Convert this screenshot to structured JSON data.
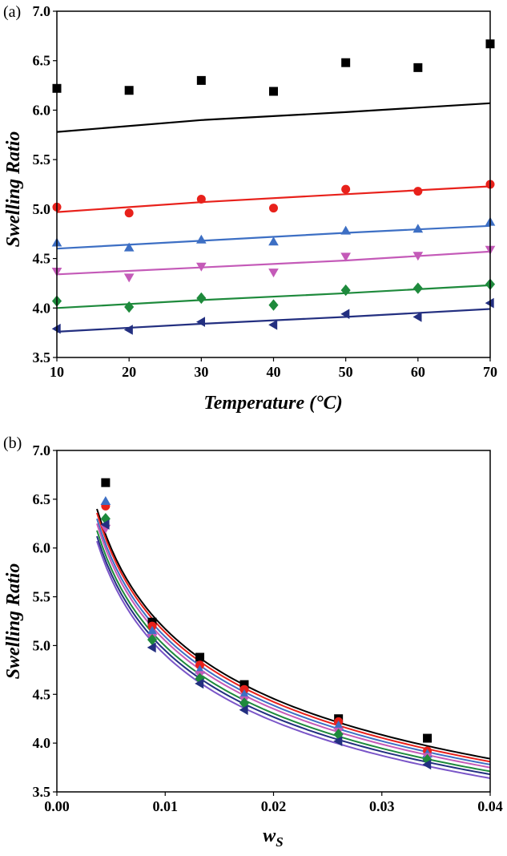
{
  "chart_data": [
    {
      "type": "scatter",
      "panel_label": "(a)",
      "xlabel": "Temperature (°C)",
      "ylabel": "Swelling Ratio",
      "xlim": [
        10,
        70
      ],
      "ylim": [
        3.5,
        7.0
      ],
      "x_ticks": [
        "10",
        "20",
        "30",
        "40",
        "50",
        "60",
        "70"
      ],
      "y_ticks": [
        "3.5",
        "4.0",
        "4.5",
        "5.0",
        "5.5",
        "6.0",
        "6.5",
        "7.0"
      ],
      "grid": false,
      "legend": "none",
      "series": [
        {
          "color": "#000000",
          "marker": "square",
          "x": [
            10,
            20,
            30,
            40,
            50,
            60,
            70
          ],
          "points": [
            6.22,
            6.2,
            6.3,
            6.19,
            6.48,
            6.43,
            6.67
          ],
          "fit": [
            [
              10,
              5.78
            ],
            [
              30,
              5.9
            ],
            [
              50,
              5.98
            ],
            [
              70,
              6.07
            ]
          ]
        },
        {
          "color": "#e8211b",
          "marker": "circle",
          "x": [
            10,
            20,
            30,
            40,
            50,
            60,
            70
          ],
          "points": [
            5.02,
            4.96,
            5.1,
            5.01,
            5.2,
            5.18,
            5.25
          ],
          "fit": [
            [
              10,
              4.97
            ],
            [
              30,
              5.07
            ],
            [
              50,
              5.15
            ],
            [
              70,
              5.23
            ]
          ]
        },
        {
          "color": "#3d6fc4",
          "marker": "triangle-up",
          "x": [
            10,
            20,
            30,
            40,
            50,
            60,
            70
          ],
          "points": [
            4.66,
            4.61,
            4.69,
            4.67,
            4.78,
            4.8,
            4.87
          ],
          "fit": [
            [
              10,
              4.6
            ],
            [
              30,
              4.68
            ],
            [
              50,
              4.76
            ],
            [
              70,
              4.83
            ]
          ]
        },
        {
          "color": "#c45ab8",
          "marker": "triangle-down",
          "x": [
            10,
            20,
            30,
            40,
            50,
            60,
            70
          ],
          "points": [
            4.37,
            4.31,
            4.42,
            4.36,
            4.52,
            4.53,
            4.59
          ],
          "fit": [
            [
              10,
              4.34
            ],
            [
              30,
              4.41
            ],
            [
              50,
              4.48
            ],
            [
              70,
              4.57
            ]
          ]
        },
        {
          "color": "#1e8a3c",
          "marker": "diamond",
          "x": [
            10,
            20,
            30,
            40,
            50,
            60,
            70
          ],
          "points": [
            4.07,
            4.01,
            4.1,
            4.03,
            4.18,
            4.2,
            4.24
          ],
          "fit": [
            [
              10,
              4.0
            ],
            [
              30,
              4.08
            ],
            [
              50,
              4.15
            ],
            [
              70,
              4.23
            ]
          ]
        },
        {
          "color": "#232f80",
          "marker": "triangle-left",
          "x": [
            10,
            20,
            30,
            40,
            50,
            60,
            70
          ],
          "points": [
            3.79,
            3.78,
            3.86,
            3.83,
            3.94,
            3.91,
            4.05
          ],
          "fit": [
            [
              10,
              3.76
            ],
            [
              30,
              3.84
            ],
            [
              50,
              3.91
            ],
            [
              70,
              3.99
            ]
          ]
        }
      ]
    },
    {
      "type": "scatter",
      "panel_label": "(b)",
      "xlabel": "w",
      "xlabel_subscript": "S",
      "ylabel": "Swelling Ratio",
      "xlim": [
        0.0,
        0.04
      ],
      "ylim": [
        3.5,
        7.0
      ],
      "x_ticks": [
        "0.00",
        "0.01",
        "0.02",
        "0.03",
        "0.04"
      ],
      "y_ticks": [
        "3.5",
        "4.0",
        "4.5",
        "5.0",
        "5.5",
        "6.0",
        "6.5",
        "7.0"
      ],
      "grid": false,
      "legend": "none",
      "series": [
        {
          "color": "#000000",
          "marker": "square",
          "x": [
            0.0045,
            0.0088,
            0.0132,
            0.0173,
            0.026,
            0.0342
          ],
          "points": [
            6.67,
            5.24,
            4.88,
            4.6,
            4.25,
            4.05
          ],
          "fit_x": [
            0.0037,
            0.04
          ],
          "fit_y": [
            6.4,
            3.84
          ]
        },
        {
          "color": "#e8211b",
          "marker": "circle",
          "x": [
            0.0045,
            0.0088,
            0.0132,
            0.0173,
            0.026,
            0.0342
          ],
          "points": [
            6.43,
            5.2,
            4.8,
            4.55,
            4.22,
            3.92
          ],
          "fit_x": [
            0.0037,
            0.04
          ],
          "fit_y": [
            6.36,
            3.81
          ]
        },
        {
          "color": "#3d6fc4",
          "marker": "triangle-up",
          "x": [
            0.0045,
            0.0088,
            0.0132,
            0.0173,
            0.026,
            0.0342
          ],
          "points": [
            6.48,
            5.15,
            4.75,
            4.5,
            4.18,
            3.89
          ],
          "fit_x": [
            0.0037,
            0.04
          ],
          "fit_y": [
            6.3,
            3.78
          ]
        },
        {
          "color": "#c45ab8",
          "marker": "triangle-down",
          "x": [
            0.0045,
            0.0088,
            0.0132,
            0.0173,
            0.026,
            0.0342
          ],
          "points": [
            6.2,
            5.08,
            4.7,
            4.44,
            4.12,
            3.86
          ],
          "fit_x": [
            0.0037,
            0.04
          ],
          "fit_y": [
            6.25,
            3.75
          ]
        },
        {
          "color": "#1e8a3c",
          "marker": "diamond",
          "x": [
            0.0045,
            0.0088,
            0.0132,
            0.0173,
            0.026,
            0.0342
          ],
          "points": [
            6.3,
            5.06,
            4.66,
            4.41,
            4.09,
            3.83
          ],
          "fit_x": [
            0.0037,
            0.04
          ],
          "fit_y": [
            6.18,
            3.71
          ]
        },
        {
          "color": "#232f80",
          "marker": "triangle-left",
          "x": [
            0.0045,
            0.0088,
            0.0132,
            0.0173,
            0.026,
            0.0342
          ],
          "points": [
            6.24,
            4.98,
            4.61,
            4.34,
            4.02,
            3.78
          ],
          "fit_x": [
            0.0037,
            0.04
          ],
          "fit_y": [
            6.12,
            3.68
          ]
        },
        {
          "color": "#7a55c8",
          "marker": "none",
          "fit_x": [
            0.0037,
            0.04
          ],
          "fit_y": [
            6.07,
            3.64
          ]
        }
      ]
    }
  ]
}
